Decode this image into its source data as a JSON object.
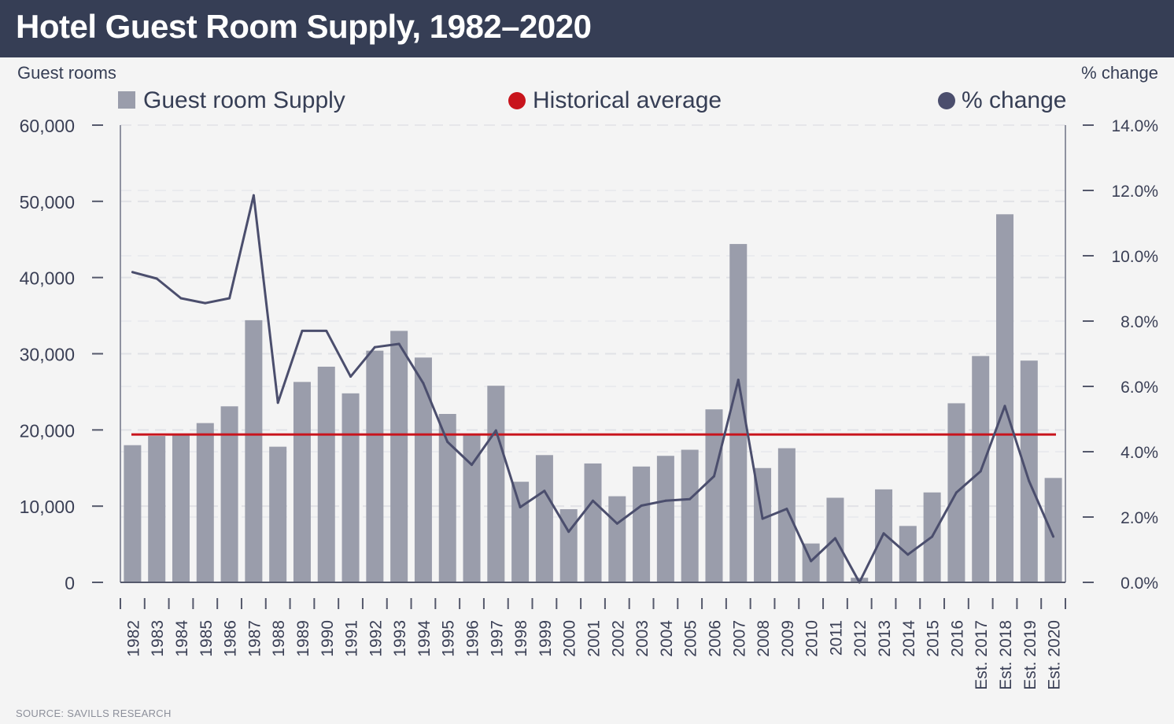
{
  "header": {
    "title": "Hotel Guest Room Supply, 1982–2020"
  },
  "axes": {
    "left_title": "Guest rooms",
    "right_title": "% change"
  },
  "legend": [
    {
      "label": "Guest room Supply",
      "marker": "square",
      "color": "#9a9dab"
    },
    {
      "label": "Historical average",
      "marker": "circle",
      "color": "#c8141c"
    },
    {
      "label": "% change",
      "marker": "circle",
      "color": "#4b4e6d"
    }
  ],
  "source": "SOURCE: SAVILLS RESEARCH",
  "chart_data": {
    "type": "bar",
    "categories": [
      "1982",
      "1983",
      "1984",
      "1985",
      "1986",
      "1987",
      "1988",
      "1989",
      "1990",
      "1991",
      "1992",
      "1993",
      "1994",
      "1995",
      "1996",
      "1997",
      "1998",
      "1999",
      "2000",
      "2001",
      "2002",
      "2003",
      "2004",
      "2005",
      "2006",
      "2007",
      "2008",
      "2009",
      "2010",
      "2011",
      "2012",
      "2013",
      "2014",
      "2015",
      "2016",
      "Est. 2017",
      "Est. 2018",
      "Est. 2019",
      "Est. 2020"
    ],
    "series": [
      {
        "name": "Guest room Supply",
        "type": "bar",
        "axis": "left",
        "color": "#9a9dab",
        "values": [
          18000,
          19200,
          19400,
          20900,
          23100,
          34400,
          17800,
          26300,
          28300,
          24800,
          30400,
          33000,
          29500,
          22100,
          19400,
          25800,
          13200,
          16700,
          9600,
          15600,
          11300,
          15200,
          16600,
          17400,
          22700,
          44400,
          15000,
          17600,
          5100,
          11100,
          600,
          12200,
          7400,
          11800,
          23500,
          29700,
          48300,
          29100,
          13700
        ]
      },
      {
        "name": "% change",
        "type": "line",
        "axis": "right",
        "color": "#4b4e6d",
        "values": [
          9.5,
          9.3,
          8.7,
          8.55,
          8.7,
          11.85,
          5.5,
          7.7,
          7.7,
          6.3,
          7.2,
          7.3,
          6.1,
          4.3,
          3.6,
          4.65,
          2.3,
          2.8,
          1.55,
          2.5,
          1.8,
          2.35,
          2.5,
          2.55,
          3.25,
          6.2,
          1.95,
          2.25,
          0.65,
          1.35,
          0.0,
          1.5,
          0.85,
          1.4,
          2.75,
          3.4,
          5.4,
          3.1,
          1.4
        ]
      },
      {
        "name": "Historical average",
        "type": "hline",
        "axis": "left",
        "color": "#c8141c",
        "value": 19400
      }
    ],
    "ylim": [
      0,
      60000
    ],
    "y_ticks": [
      "0",
      "10,000",
      "20,000",
      "30,000",
      "40,000",
      "50,000",
      "60,000"
    ],
    "ylim_right": [
      0,
      14
    ],
    "y_ticks_right": [
      "0.0%",
      "2.0%",
      "4.0%",
      "6.0%",
      "8.0%",
      "10.0%",
      "12.0%",
      "14.0%"
    ],
    "ylabel": "Guest rooms",
    "ylabel_right": "% change",
    "grid": true,
    "legend_position": "top"
  }
}
